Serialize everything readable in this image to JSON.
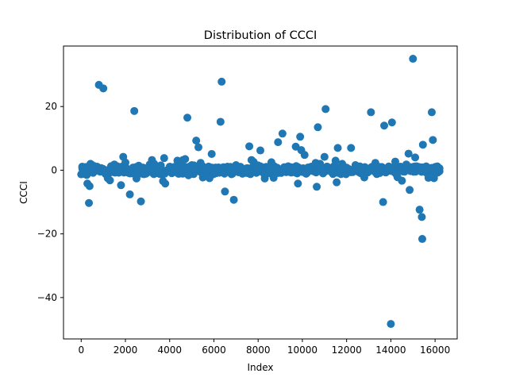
{
  "chart_data": {
    "type": "scatter",
    "title": "Distribution of CCCI",
    "xlabel": "Index",
    "ylabel": "CCCI",
    "xlim": [
      -800,
      17000
    ],
    "ylim": [
      -53,
      39
    ],
    "xticks": [
      0,
      2000,
      4000,
      6000,
      8000,
      10000,
      12000,
      14000,
      16000
    ],
    "xtick_labels": [
      "0",
      "2000",
      "4000",
      "6000",
      "8000",
      "10000",
      "12000",
      "14000",
      "16000"
    ],
    "yticks": [
      -40,
      -20,
      0,
      20
    ],
    "ytick_labels": [
      "−40",
      "−20",
      "0",
      "20"
    ],
    "grid": false,
    "marker_color": "#1f77b4",
    "series": [
      {
        "points": [
          [
            50,
            0.5
          ],
          [
            150,
            -0.4
          ],
          [
            200,
            1.0
          ],
          [
            250,
            -1.5
          ],
          [
            280,
            -4.2
          ],
          [
            320,
            0.3
          ],
          [
            350,
            -10.3
          ],
          [
            380,
            -5.0
          ],
          [
            420,
            2.0
          ],
          [
            500,
            1.6
          ],
          [
            800,
            26.8
          ],
          [
            1000,
            25.7
          ],
          [
            1100,
            -1.2
          ],
          [
            1200,
            -2.5
          ],
          [
            1300,
            -3.2
          ],
          [
            1500,
            1.8
          ],
          [
            1700,
            -0.8
          ],
          [
            1800,
            -4.7
          ],
          [
            1900,
            4.2
          ],
          [
            2000,
            2.4
          ],
          [
            2100,
            -0.7
          ],
          [
            2200,
            -7.6
          ],
          [
            2400,
            18.6
          ],
          [
            2500,
            -2.6
          ],
          [
            2600,
            1.4
          ],
          [
            2700,
            -9.8
          ],
          [
            2900,
            0.6
          ],
          [
            3100,
            1.8
          ],
          [
            3200,
            3.2
          ],
          [
            3300,
            2.0
          ],
          [
            3500,
            -0.5
          ],
          [
            3600,
            1.5
          ],
          [
            3700,
            -3.4
          ],
          [
            3750,
            3.8
          ],
          [
            3800,
            -4.2
          ],
          [
            4000,
            0.9
          ],
          [
            4200,
            1.0
          ],
          [
            4350,
            3.0
          ],
          [
            4500,
            2.0
          ],
          [
            4600,
            3.2
          ],
          [
            4700,
            3.5
          ],
          [
            4800,
            16.5
          ],
          [
            4850,
            -1.6
          ],
          [
            4900,
            0.8
          ],
          [
            5000,
            1.6
          ],
          [
            5100,
            1.5
          ],
          [
            5200,
            9.3
          ],
          [
            5300,
            7.2
          ],
          [
            5400,
            2.3
          ],
          [
            5500,
            -2.3
          ],
          [
            5700,
            0.5
          ],
          [
            5800,
            -2.5
          ],
          [
            5900,
            5.1
          ],
          [
            6100,
            0.6
          ],
          [
            6300,
            15.2
          ],
          [
            6350,
            27.8
          ],
          [
            6500,
            -6.7
          ],
          [
            6700,
            0.3
          ],
          [
            6900,
            -9.3
          ],
          [
            7000,
            1.6
          ],
          [
            7200,
            0.9
          ],
          [
            7500,
            -0.9
          ],
          [
            7600,
            7.5
          ],
          [
            7700,
            3.2
          ],
          [
            7800,
            2.6
          ],
          [
            8000,
            1.5
          ],
          [
            8100,
            6.2
          ],
          [
            8300,
            -2.6
          ],
          [
            8500,
            1.2
          ],
          [
            8600,
            2.5
          ],
          [
            8700,
            -2.4
          ],
          [
            8900,
            8.8
          ],
          [
            9100,
            11.5
          ],
          [
            9300,
            0.8
          ],
          [
            9500,
            0.9
          ],
          [
            9700,
            7.4
          ],
          [
            9800,
            -4.2
          ],
          [
            9900,
            10.5
          ],
          [
            9950,
            6.3
          ],
          [
            10100,
            4.8
          ],
          [
            10200,
            -0.9
          ],
          [
            10400,
            1.1
          ],
          [
            10600,
            2.3
          ],
          [
            10650,
            -5.2
          ],
          [
            10700,
            13.5
          ],
          [
            10800,
            2.0
          ],
          [
            11000,
            4.2
          ],
          [
            11050,
            19.2
          ],
          [
            11300,
            -0.4
          ],
          [
            11500,
            3.0
          ],
          [
            11550,
            -3.8
          ],
          [
            11600,
            7.0
          ],
          [
            11800,
            2.0
          ],
          [
            12000,
            0.8
          ],
          [
            12200,
            7.0
          ],
          [
            12400,
            1.6
          ],
          [
            12600,
            1.2
          ],
          [
            12800,
            -2.3
          ],
          [
            13000,
            0.5
          ],
          [
            13100,
            18.2
          ],
          [
            13300,
            2.3
          ],
          [
            13500,
            1.0
          ],
          [
            13650,
            -10.0
          ],
          [
            13700,
            14.0
          ],
          [
            13900,
            0.8
          ],
          [
            14000,
            -48.3
          ],
          [
            14050,
            15.0
          ],
          [
            14200,
            2.7
          ],
          [
            14300,
            -2.2
          ],
          [
            14500,
            -3.3
          ],
          [
            14700,
            1.8
          ],
          [
            14800,
            5.2
          ],
          [
            14850,
            -6.2
          ],
          [
            15000,
            35.0
          ],
          [
            15100,
            4.0
          ],
          [
            15300,
            -12.4
          ],
          [
            15350,
            0.7
          ],
          [
            15400,
            -14.7
          ],
          [
            15420,
            -21.6
          ],
          [
            15450,
            8.0
          ],
          [
            15600,
            1.2
          ],
          [
            15700,
            -2.4
          ],
          [
            15800,
            0.4
          ],
          [
            15850,
            18.2
          ],
          [
            15900,
            9.5
          ],
          [
            15950,
            -2.5
          ],
          [
            16000,
            1.0
          ],
          [
            16050,
            -0.5
          ],
          [
            16100,
            1.2
          ],
          [
            16150,
            0.2
          ],
          [
            16200,
            0.6
          ]
        ]
      }
    ]
  }
}
